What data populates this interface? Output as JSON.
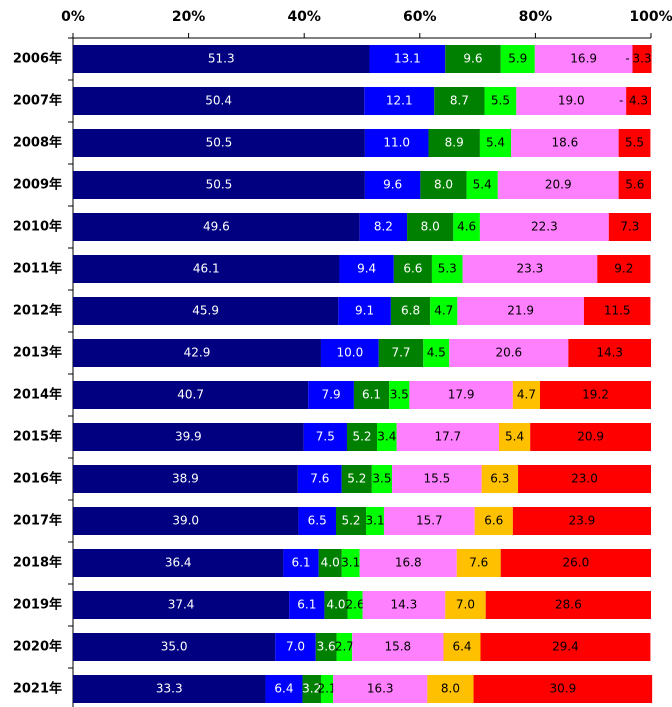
{
  "chart_data": {
    "type": "bar",
    "orientation": "horizontal",
    "stacked": true,
    "categories": [
      "2006年",
      "2007年",
      "2008年",
      "2009年",
      "2010年",
      "2011年",
      "2012年",
      "2013年",
      "2014年",
      "2015年",
      "2016年",
      "2017年",
      "2018年",
      "2019年",
      "2020年",
      "2021年"
    ],
    "xlim": [
      0,
      100
    ],
    "xticks": [
      {
        "value": 0,
        "label": "0%"
      },
      {
        "value": 20,
        "label": "20%"
      },
      {
        "value": 40,
        "label": "40%"
      },
      {
        "value": 60,
        "label": "60%"
      },
      {
        "value": 80,
        "label": "80%"
      },
      {
        "value": 100,
        "label": "100%"
      }
    ],
    "series": [
      {
        "color": "#000080",
        "values": [
          51.3,
          50.4,
          50.5,
          50.5,
          49.6,
          46.1,
          45.9,
          42.9,
          40.7,
          39.9,
          38.9,
          39.0,
          36.4,
          37.4,
          35.0,
          33.3
        ],
        "value_labels": [
          "51.3",
          "50.4",
          "50.5",
          "50.5",
          "49.6",
          "46.1",
          "45.9",
          "42.9",
          "40.7",
          "39.9",
          "38.9",
          "39.0",
          "36.4",
          "37.4",
          "35.0",
          "33.3"
        ]
      },
      {
        "color": "#0000ff",
        "values": [
          13.1,
          12.1,
          11.0,
          9.6,
          8.2,
          9.4,
          9.1,
          10.0,
          7.9,
          7.5,
          7.6,
          6.5,
          6.1,
          6.1,
          7.0,
          6.4
        ],
        "value_labels": [
          "13.1",
          "12.1",
          "11.0",
          "9.6",
          "8.2",
          "9.4",
          "9.1",
          "10.0",
          "7.9",
          "7.5",
          "7.6",
          "6.5",
          "6.1",
          "6.1",
          "7.0",
          "6.4"
        ]
      },
      {
        "color": "#008000",
        "values": [
          9.6,
          8.7,
          8.9,
          8.0,
          8.0,
          6.6,
          6.8,
          7.7,
          6.1,
          5.2,
          5.2,
          5.2,
          4.0,
          4.0,
          3.6,
          3.2
        ],
        "value_labels": [
          "9.6",
          "8.7",
          "8.9",
          "8.0",
          "8.0",
          "6.6",
          "6.8",
          "7.7",
          "6.1",
          "5.2",
          "5.2",
          "5.2",
          "4.0",
          "4.0",
          "3.6",
          "3.2"
        ]
      },
      {
        "color": "#00ff00",
        "values": [
          5.9,
          5.5,
          5.4,
          5.4,
          4.6,
          5.3,
          4.7,
          4.5,
          3.5,
          3.4,
          3.5,
          3.1,
          3.1,
          2.6,
          2.7,
          2.1
        ],
        "value_labels": [
          "5.9",
          "5.5",
          "5.4",
          "5.4",
          "4.6",
          "5.3",
          "4.7",
          "4.5",
          "3.5",
          "3.4",
          "3.5",
          "3.1",
          "3.1",
          "2.6",
          "2.7",
          "2.1"
        ]
      },
      {
        "color": "#ff80ff",
        "values": [
          16.9,
          19.0,
          18.6,
          20.9,
          22.3,
          23.3,
          21.9,
          20.6,
          17.9,
          17.7,
          15.5,
          15.7,
          16.8,
          14.3,
          15.8,
          16.3
        ],
        "value_labels": [
          "16.9",
          "19.0",
          "18.6",
          "20.9",
          "22.3",
          "23.3",
          "21.9",
          "20.6",
          "17.9",
          "17.7",
          "15.5",
          "15.7",
          "16.8",
          "14.3",
          "15.8",
          "16.3"
        ]
      },
      {
        "color": "#ffc000",
        "values": [
          null,
          null,
          null,
          null,
          null,
          null,
          null,
          null,
          4.7,
          5.4,
          6.3,
          6.6,
          7.6,
          7.0,
          6.4,
          8.0
        ],
        "value_labels": [
          "-",
          "-",
          null,
          null,
          null,
          null,
          null,
          null,
          "4.7",
          "5.4",
          "6.3",
          "6.6",
          "7.6",
          "7.0",
          "6.4",
          "8.0"
        ]
      },
      {
        "color": "#ff0000",
        "values": [
          3.3,
          4.3,
          5.5,
          5.6,
          7.3,
          9.2,
          11.5,
          14.3,
          19.2,
          20.9,
          23.0,
          23.9,
          26.0,
          28.6,
          29.4,
          30.9
        ],
        "value_labels": [
          "3.3",
          "4.3",
          "5.5",
          "5.6",
          "7.3",
          "9.2",
          "11.5",
          "14.3",
          "19.2",
          "20.9",
          "23.0",
          "23.9",
          "26.0",
          "28.6",
          "29.4",
          "30.9"
        ]
      }
    ]
  }
}
